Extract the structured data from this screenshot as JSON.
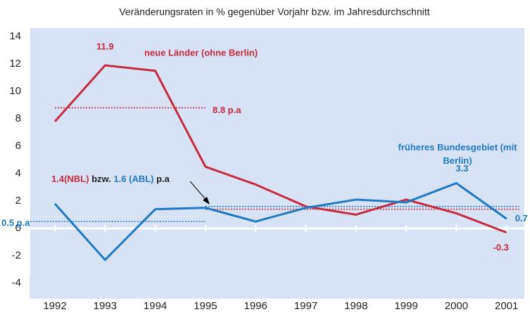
{
  "chart_data": {
    "type": "line",
    "title": "Veränderungsraten in % gegenüber Vorjahr bzw. im Jahresdurchschnitt",
    "categories": [
      "1992",
      "1993",
      "1994",
      "1995",
      "1996",
      "1997",
      "1998",
      "1999",
      "2000",
      "2001"
    ],
    "series": [
      {
        "name": "neue Länder (ohne Berlin)",
        "color": "#c62a3c",
        "values": [
          7.8,
          11.9,
          11.5,
          4.5,
          3.2,
          1.6,
          1.0,
          2.1,
          1.1,
          -0.3
        ]
      },
      {
        "name": "früheres Bundesgebiet (mit Berlin)",
        "color": "#1f79c3",
        "values": [
          1.8,
          -2.3,
          1.4,
          1.5,
          0.5,
          1.5,
          2.1,
          1.9,
          3.3,
          0.7
        ]
      }
    ],
    "reference_lines": [
      {
        "value": 8.8,
        "color": "#c62a3c",
        "label": "8.8 p.a"
      },
      {
        "value": 0.5,
        "color": "#1f79c3",
        "label": "0.5 p.a"
      },
      {
        "value": 1.4,
        "color": "#c62a3c"
      },
      {
        "value": 1.6,
        "color": "#1f79c3"
      }
    ],
    "annotation": [
      {
        "text": "1.4(NBL)",
        "color": "#c62a3c"
      },
      {
        "text": "bzw.",
        "color": "#222222"
      },
      {
        "text": "1.6 (ABL)",
        "color": "#1f79c3"
      },
      {
        "text": "p.a",
        "color": "#222222"
      }
    ],
    "ylim": [
      -4,
      14
    ],
    "yticks": [
      -4,
      -2,
      0,
      2,
      4,
      6,
      8,
      10,
      12,
      14
    ]
  }
}
